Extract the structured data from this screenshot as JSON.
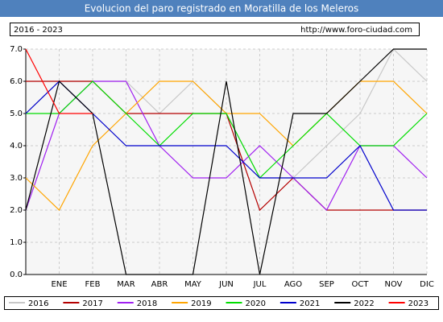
{
  "chart_data": {
    "type": "line",
    "title": "Evolucion del paro registrado en Moratilla de los Meleros",
    "subtitle": "2016 - 2023",
    "source": "http://www.foro-ciudad.com",
    "categories": [
      null,
      "ENE",
      "FEB",
      "MAR",
      "ABR",
      "MAY",
      "JUN",
      "JUL",
      "AGO",
      "SEP",
      "OCT",
      "NOV",
      "DIC"
    ],
    "ylim": [
      0,
      7
    ],
    "yticks": [
      {
        "value": 0,
        "label": "0.0"
      },
      {
        "value": 1,
        "label": "1.0"
      },
      {
        "value": 2,
        "label": "2.0"
      },
      {
        "value": 3,
        "label": "3.0"
      },
      {
        "value": 4,
        "label": "4.0"
      },
      {
        "value": 5,
        "label": "5.0"
      },
      {
        "value": 6,
        "label": "6.0"
      },
      {
        "value": 7,
        "label": "7.0"
      }
    ],
    "grid": true,
    "series": [
      {
        "name": "2016",
        "color": "#c8c8c8",
        "values": [
          5,
          6,
          6,
          6,
          5,
          6,
          5,
          3,
          3,
          4,
          5,
          7,
          6
        ]
      },
      {
        "name": "2017",
        "color": "#b40000",
        "values": [
          6,
          6,
          6,
          5,
          5,
          5,
          5,
          2,
          3,
          2,
          2,
          2,
          2
        ]
      },
      {
        "name": "2018",
        "color": "#a020f0",
        "values": [
          2,
          5,
          6,
          6,
          4,
          3,
          3,
          4,
          3,
          2,
          4,
          4,
          3
        ]
      },
      {
        "name": "2019",
        "color": "#ffa500",
        "values": [
          3,
          2,
          4,
          5,
          6,
          6,
          5,
          5,
          4,
          5,
          6,
          6,
          5
        ]
      },
      {
        "name": "2020",
        "color": "#00dd00",
        "values": [
          5,
          5,
          6,
          5,
          4,
          5,
          5,
          3,
          4,
          5,
          4,
          4,
          5
        ]
      },
      {
        "name": "2021",
        "color": "#0000cc",
        "values": [
          5,
          6,
          5,
          4,
          4,
          4,
          4,
          3,
          3,
          3,
          4,
          2,
          2
        ]
      },
      {
        "name": "2022",
        "color": "#000000",
        "values": [
          2,
          6,
          5,
          0,
          0,
          0,
          6,
          0,
          5,
          5,
          6,
          7,
          7
        ]
      },
      {
        "name": "2023",
        "color": "#ff0000",
        "values": [
          7,
          5,
          5,
          null,
          null,
          null,
          null,
          null,
          null,
          null,
          null,
          null,
          null
        ]
      }
    ]
  }
}
